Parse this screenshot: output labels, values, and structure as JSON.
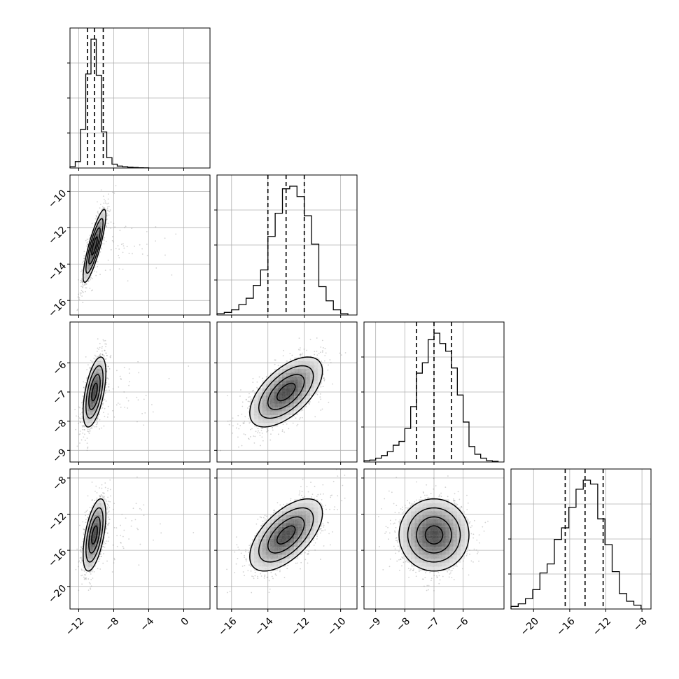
{
  "chart_data": {
    "type": "corner",
    "parameters": 4,
    "style": {
      "line_color": "#000000",
      "grid_color": "#b0b0b0",
      "sample_color": "#7f7f7f",
      "grid": true
    },
    "axis_ranges": [
      [
        -13,
        3
      ],
      [
        -16.8,
        -9.1
      ],
      [
        -9.4,
        -4.6
      ],
      [
        -22.5,
        -7
      ]
    ],
    "ticks": [
      {
        "values": [
          -12,
          -8,
          -4,
          0
        ],
        "labels": [
          "−12",
          "−8",
          "−4",
          "0"
        ]
      },
      {
        "values": [
          -16,
          -14,
          -12,
          -10
        ],
        "labels": [
          "−16",
          "−14",
          "−12",
          "−10"
        ]
      },
      {
        "values": [
          -9,
          -8,
          -7,
          -6
        ],
        "labels": [
          "−9",
          "−8",
          "−7",
          "−6"
        ]
      },
      {
        "values": [
          -20,
          -16,
          -12,
          -8
        ],
        "labels": [
          "−20",
          "−16",
          "−12",
          "−8"
        ]
      }
    ],
    "marginals": [
      {
        "quantiles": [
          -11.0,
          -10.2,
          -9.2
        ],
        "bin_edges": [
          -13,
          -12.4,
          -11.8,
          -11.2,
          -10.6,
          -10.0,
          -9.4,
          -8.8,
          -8.2,
          -7.6,
          -7.0,
          -6.4,
          -5.8,
          -5.2,
          -4.6,
          -4.0
        ],
        "counts": [
          0.01,
          0.05,
          0.3,
          0.73,
          1.0,
          0.72,
          0.28,
          0.08,
          0.03,
          0.015,
          0.01,
          0.006,
          0.004,
          0.002,
          0.001
        ]
      },
      {
        "quantiles": [
          -14.0,
          -13.0,
          -12.0
        ],
        "bin_edges": [
          -16.8,
          -16.4,
          -16.0,
          -15.6,
          -15.2,
          -14.8,
          -14.4,
          -14.0,
          -13.6,
          -13.2,
          -12.8,
          -12.4,
          -12.0,
          -11.6,
          -11.2,
          -10.8,
          -10.4,
          -10.0,
          -9.6
        ],
        "counts": [
          0.01,
          0.02,
          0.04,
          0.08,
          0.13,
          0.23,
          0.35,
          0.61,
          0.79,
          0.98,
          1.0,
          0.92,
          0.77,
          0.55,
          0.22,
          0.11,
          0.04,
          0.01
        ]
      },
      {
        "quantiles": [
          -7.6,
          -7.0,
          -6.4
        ],
        "bin_edges": [
          -9.4,
          -9.2,
          -9.0,
          -8.8,
          -8.6,
          -8.4,
          -8.2,
          -8.0,
          -7.8,
          -7.6,
          -7.4,
          -7.2,
          -7.0,
          -6.8,
          -6.6,
          -6.4,
          -6.2,
          -6.0,
          -5.8,
          -5.6,
          -5.4,
          -5.2,
          -5.0,
          -4.8
        ],
        "counts": [
          0.01,
          0.015,
          0.03,
          0.05,
          0.08,
          0.13,
          0.16,
          0.26,
          0.43,
          0.69,
          0.77,
          0.95,
          1.0,
          0.92,
          0.86,
          0.73,
          0.52,
          0.31,
          0.12,
          0.06,
          0.03,
          0.01,
          0.005
        ]
      },
      {
        "quantiles": [
          -16.5,
          -14.3,
          -12.3
        ],
        "bin_edges": [
          -22.5,
          -21.7,
          -20.9,
          -20.1,
          -19.3,
          -18.5,
          -17.7,
          -16.9,
          -16.1,
          -15.3,
          -14.5,
          -13.7,
          -12.9,
          -12.1,
          -11.3,
          -10.5,
          -9.7,
          -8.9,
          -8.1
        ],
        "counts": [
          0.02,
          0.04,
          0.08,
          0.15,
          0.28,
          0.35,
          0.54,
          0.63,
          0.79,
          0.93,
          1.0,
          0.97,
          0.7,
          0.5,
          0.29,
          0.12,
          0.06,
          0.03
        ]
      }
    ],
    "correlations": [
      [
        1.0,
        0.85,
        0.55,
        0.55
      ],
      [
        0.85,
        1.0,
        0.6,
        0.6
      ],
      [
        0.55,
        0.6,
        1.0,
        0.0
      ],
      [
        0.55,
        0.6,
        0.0,
        1.0
      ]
    ],
    "centers": [
      -10.2,
      -13.0,
      -7.0,
      -14.3
    ],
    "sigmas": [
      0.65,
      1.0,
      0.6,
      2.0
    ]
  }
}
